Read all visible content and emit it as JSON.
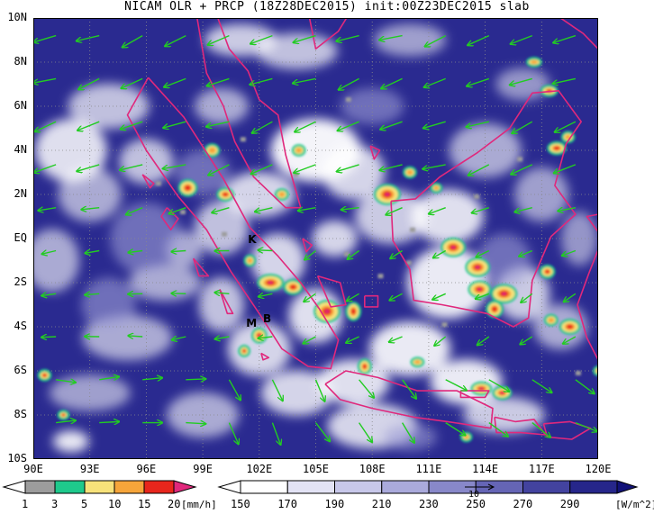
{
  "title": "NICAM OLR + PRCP (18Z28DEC2015) init:00Z23DEC2015 slab",
  "map": {
    "lat_labels": [
      "10N",
      "8N",
      "6N",
      "4N",
      "2N",
      "EQ",
      "2S",
      "4S",
      "6S",
      "8S",
      "10S"
    ],
    "lon_labels": [
      "90E",
      "93E",
      "96E",
      "99E",
      "102E",
      "105E",
      "108E",
      "111E",
      "114E",
      "117E",
      "120E"
    ],
    "places": [
      {
        "label": "K",
        "lon": 101.4,
        "lat": -0.2
      },
      {
        "label": "M",
        "lon": 101.3,
        "lat": -4.0
      },
      {
        "label": "B",
        "lon": 102.2,
        "lat": -3.8
      }
    ],
    "coastline_color": "#e0287c",
    "wind_vector_color": "#22cc22",
    "grid": "dotted"
  },
  "precip_colorbar": {
    "labels": [
      "1",
      "3",
      "5",
      "10",
      "15",
      "20"
    ],
    "unit": "[mm/h]",
    "colors": [
      "#9c9c9c",
      "#1ec98c",
      "#f7e27a",
      "#f6a53a",
      "#e8261c",
      "#e0287c"
    ]
  },
  "olr_colorbar": {
    "labels": [
      "150",
      "170",
      "190",
      "210",
      "230",
      "250",
      "270",
      "290"
    ],
    "unit": "[W/m^2]",
    "colors": [
      "#ffffff",
      "#e3e3f5",
      "#c8c8ea",
      "#aaaadb",
      "#8888c9",
      "#6565b5",
      "#43439f",
      "#26268a",
      "#121278"
    ],
    "reference_vector_label": "10"
  }
}
